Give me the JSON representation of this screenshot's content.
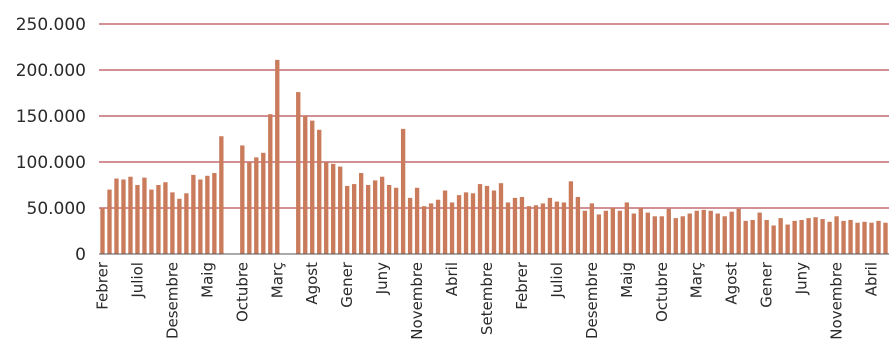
{
  "chart_data": {
    "type": "bar",
    "title": "",
    "xlabel": "",
    "ylabel": "",
    "ylim": [
      0,
      250000
    ],
    "yticks": [
      0,
      50000,
      100000,
      150000,
      200000,
      250000
    ],
    "ytick_labels": [
      "0",
      "50.000",
      "100.000",
      "150.000",
      "200.000",
      "250.000"
    ],
    "grid": true,
    "legend": "none",
    "colors": {
      "bar": "#c97b5b",
      "grid": "#a3202a",
      "text": "#2a2a2a"
    },
    "x_labels": [
      {
        "index": 0,
        "label": "Febrer"
      },
      {
        "index": 5,
        "label": "Juliol"
      },
      {
        "index": 10,
        "label": "Desembre"
      },
      {
        "index": 15,
        "label": "Maig"
      },
      {
        "index": 20,
        "label": "Octubre"
      },
      {
        "index": 25,
        "label": "Març"
      },
      {
        "index": 30,
        "label": "Agost"
      },
      {
        "index": 35,
        "label": "Gener"
      },
      {
        "index": 40,
        "label": "Juny"
      },
      {
        "index": 45,
        "label": "Novembre"
      },
      {
        "index": 50,
        "label": "Abril"
      },
      {
        "index": 55,
        "label": "Setembre"
      },
      {
        "index": 60,
        "label": "Febrer"
      },
      {
        "index": 65,
        "label": "Juliol"
      },
      {
        "index": 70,
        "label": "Desembre"
      },
      {
        "index": 75,
        "label": "Maig"
      },
      {
        "index": 80,
        "label": "Octubre"
      },
      {
        "index": 85,
        "label": "Març"
      },
      {
        "index": 90,
        "label": "Agost"
      },
      {
        "index": 95,
        "label": "Gener"
      },
      {
        "index": 100,
        "label": "Juny"
      },
      {
        "index": 105,
        "label": "Novembre"
      },
      {
        "index": 110,
        "label": "Abril"
      }
    ],
    "values": [
      50000,
      70000,
      82000,
      81000,
      84000,
      75000,
      83000,
      70000,
      75000,
      78000,
      67000,
      60000,
      66000,
      86000,
      81000,
      85000,
      88000,
      128000,
      null,
      null,
      118000,
      100000,
      105000,
      110000,
      152000,
      211000,
      null,
      null,
      176000,
      150000,
      145000,
      135000,
      100000,
      98000,
      95000,
      74000,
      76000,
      88000,
      75000,
      80000,
      84000,
      75000,
      72000,
      136000,
      61000,
      72000,
      52000,
      55000,
      59000,
      69000,
      56000,
      64000,
      67000,
      66000,
      76000,
      74000,
      69000,
      77000,
      56000,
      61000,
      62000,
      52000,
      53000,
      55000,
      61000,
      57000,
      56000,
      79000,
      62000,
      47000,
      55000,
      43000,
      47000,
      50000,
      47000,
      56000,
      44000,
      50000,
      45000,
      41000,
      41000,
      49000,
      39000,
      41000,
      44000,
      47000,
      48000,
      47000,
      44000,
      41000,
      46000,
      49000,
      36000,
      37000,
      45000,
      37000,
      31000,
      39000,
      32000,
      36000,
      37000,
      39000,
      40000,
      38000,
      35000,
      41000,
      36000,
      37000,
      34000,
      35000,
      34000,
      36000,
      34000
    ]
  }
}
